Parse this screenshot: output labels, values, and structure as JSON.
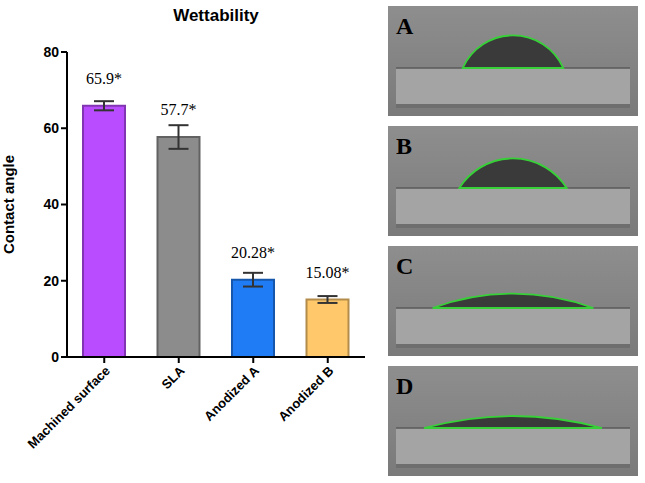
{
  "chart_data": {
    "type": "bar",
    "title": "Wettability",
    "y_label": "Contact angle",
    "categories": [
      "Machined surface",
      "SLA",
      "Anodized A",
      "Anodized B"
    ],
    "values": [
      65.9,
      57.7,
      20.28,
      15.08
    ],
    "errors": [
      1.2,
      3.1,
      1.8,
      0.9
    ],
    "value_labels": [
      "65.9*",
      "57.7*",
      "20.28*",
      "15.08*"
    ],
    "data_labels": true,
    "colors": [
      "#b94cff",
      "#8c8c8c",
      "#1f7cf5",
      "#ffc86b"
    ],
    "ylim": [
      0,
      80
    ],
    "yticks": [
      0,
      20,
      40,
      60,
      80
    ],
    "grid": false
  },
  "images": {
    "panels": [
      "A",
      "B",
      "C",
      "D"
    ]
  }
}
